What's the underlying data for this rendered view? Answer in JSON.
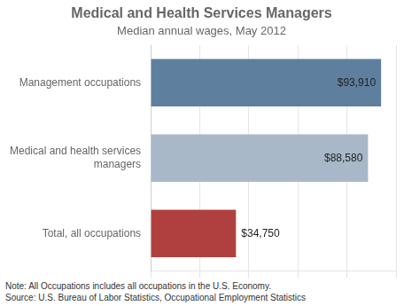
{
  "chart_data": {
    "type": "bar",
    "orientation": "horizontal",
    "title": "Medical and Health Services Managers",
    "subtitle": "Median annual wages, May 2012",
    "categories": [
      "Total, all occupations",
      "Medical and health services\nmanagers",
      "Management occupations"
    ],
    "values": [
      34750,
      88580,
      93910
    ],
    "value_labels": [
      "$34,750",
      "$88,580",
      "$93,910"
    ],
    "data_labels": true,
    "colors": [
      "#b04040",
      "#a8b8c8",
      "#5f7f9f"
    ],
    "xlim": [
      0,
      100000
    ],
    "xticks": [
      0,
      20000,
      40000,
      60000,
      80000,
      100000
    ],
    "grid": true,
    "tick_labels": "y",
    "annotations": [
      "Note: All Occupations includes all occupations in the U.S. Economy.",
      "Source: U.S. Bureau of Labor Statistics, Occupational Employment Statistics"
    ]
  }
}
